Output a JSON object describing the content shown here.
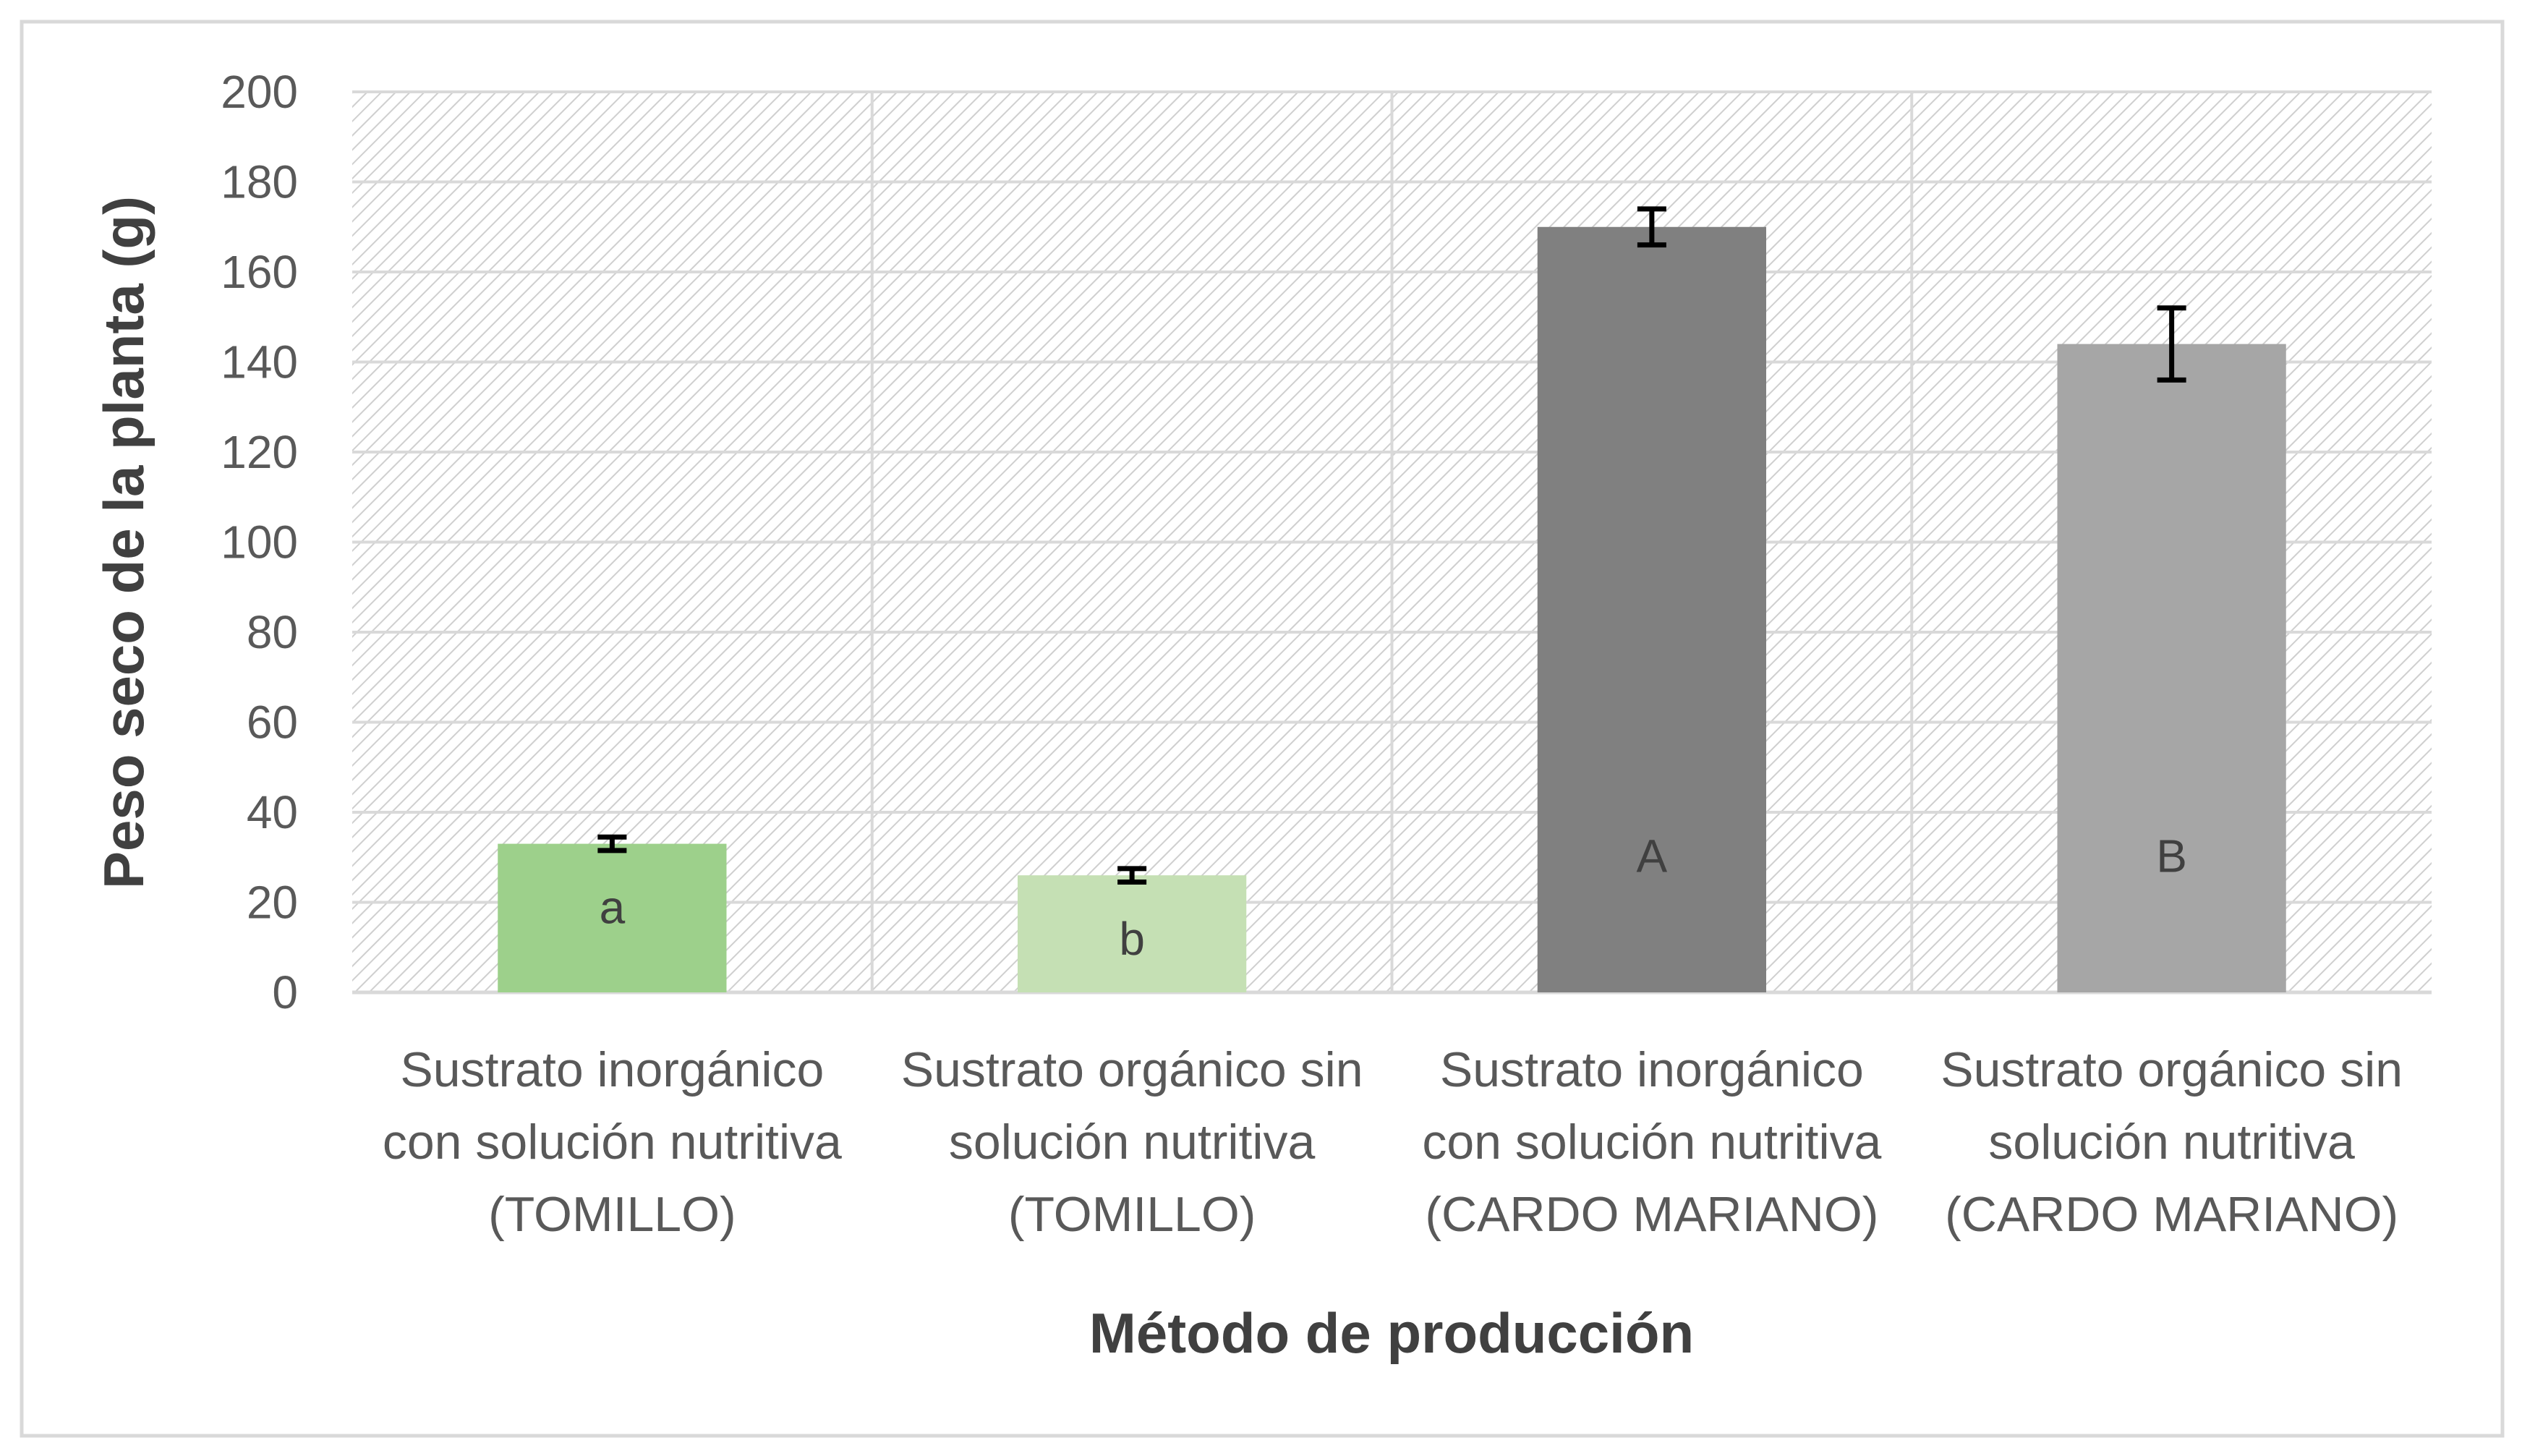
{
  "chart_data": {
    "type": "bar",
    "categories": [
      [
        "Sustrato inorgánico",
        "con solución nutritiva",
        "(TOMILLO)"
      ],
      [
        "Sustrato orgánico sin",
        "solución nutritiva",
        "(TOMILLO)"
      ],
      [
        "Sustrato inorgánico",
        "con solución nutritiva",
        "(CARDO MARIANO)"
      ],
      [
        "Sustrato orgánico sin",
        "solución nutritiva",
        "(CARDO MARIANO)"
      ]
    ],
    "values": [
      33,
      26,
      170,
      144
    ],
    "error": [
      1.5,
      1.5,
      4,
      8
    ],
    "bar_labels": [
      "a",
      "b",
      "A",
      "B"
    ],
    "bar_colors": [
      "#9dd08b",
      "#c5e0b4",
      "#808080",
      "#a6a6a6"
    ],
    "xlabel": "Método de producción",
    "ylabel": "Peso seco de la planta (g)",
    "ylim": [
      0,
      200
    ],
    "yticks": [
      0,
      20,
      40,
      60,
      80,
      100,
      120,
      140,
      160,
      180,
      200
    ],
    "grid": true,
    "plot_background": "hatched",
    "legend": "none"
  }
}
